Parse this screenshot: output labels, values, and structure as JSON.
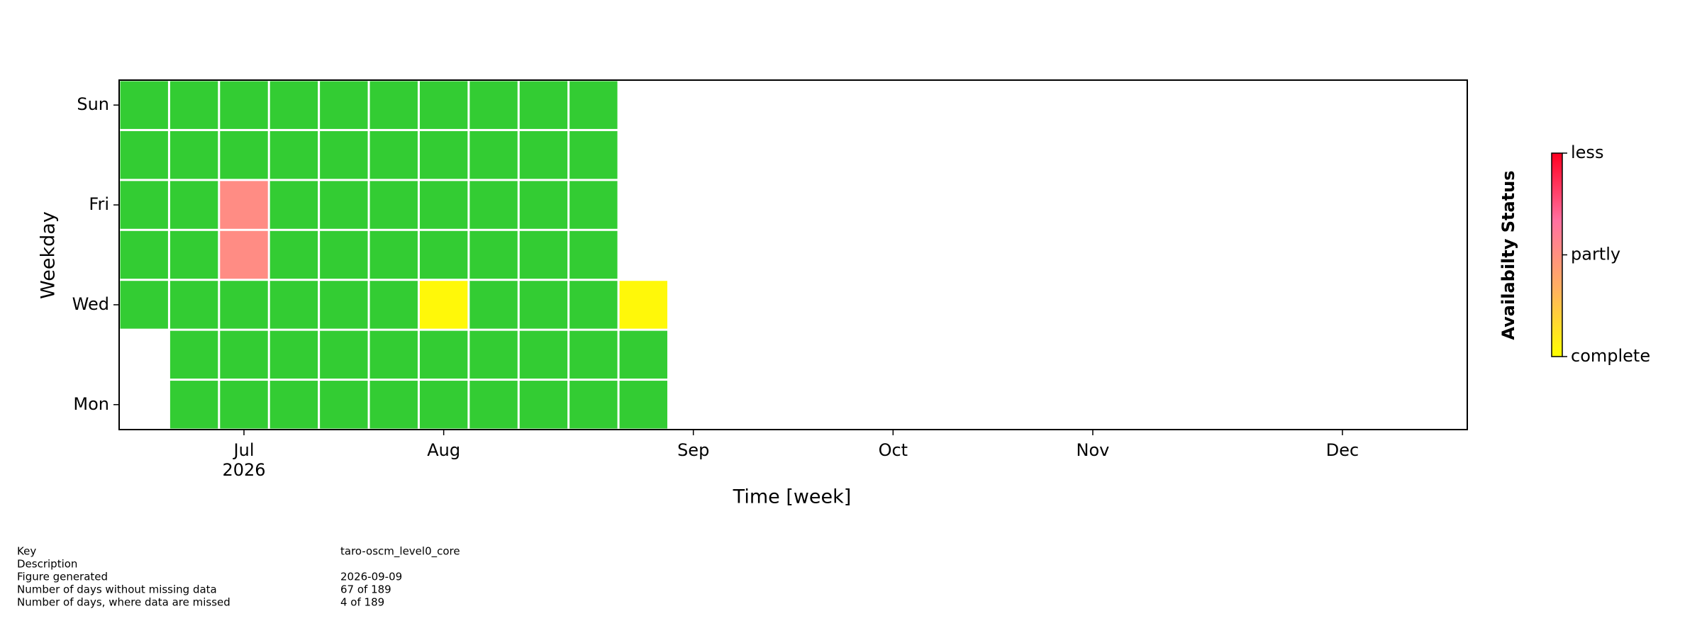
{
  "chart_data": {
    "type": "calendar-heatmap",
    "xlabel": "Time [week]",
    "ylabel": "Weekday",
    "colorbar_label": "Availabilty Status",
    "categories": [
      "Mon",
      null,
      "Wed",
      null,
      "Fri",
      null,
      "Sun"
    ],
    "xlim": [
      -0.5,
      26.5
    ],
    "xticks": [
      {
        "value": 2,
        "label": "Jul"
      },
      {
        "value": 6,
        "label": "Aug"
      },
      {
        "value": 11,
        "label": "Sep"
      },
      {
        "value": 15,
        "label": "Oct"
      },
      {
        "value": 19,
        "label": "Nov"
      },
      {
        "value": 24,
        "label": "Dec"
      }
    ],
    "x_year_label": "2026",
    "values": [
      [
        null,
        0,
        0,
        0,
        0,
        0,
        0,
        0,
        0,
        0,
        0
      ],
      [
        null,
        0,
        0,
        0,
        0,
        0,
        0,
        0,
        0,
        0,
        0
      ],
      [
        0,
        0,
        0,
        0,
        0,
        0,
        3,
        0,
        0,
        0,
        3
      ],
      [
        0,
        0,
        52,
        0,
        0,
        0,
        0,
        0,
        0,
        0,
        null
      ],
      [
        0,
        0,
        52,
        0,
        0,
        0,
        0,
        0,
        0,
        0,
        null
      ],
      [
        0,
        0,
        0,
        0,
        0,
        0,
        0,
        0,
        0,
        0,
        null
      ],
      [
        0,
        0,
        0,
        0,
        0,
        0,
        0,
        0,
        0,
        0,
        null
      ]
    ],
    "no_missing_color": "#33cc33",
    "clim": [
      0,
      100
    ],
    "cticks": [
      {
        "value": 0,
        "label": "complete"
      },
      {
        "value": 50,
        "label": "partly"
      },
      {
        "value": 100,
        "label": "less"
      }
    ],
    "colormap": [
      "#ffff00",
      "#ffb060",
      "#ff70a0",
      "#ff0020"
    ]
  },
  "info": {
    "rows": [
      [
        "Key",
        "taro-oscm_level0_core"
      ],
      [
        "Description"
      ],
      [
        "Figure generated",
        "2026-09-09"
      ],
      [
        "Number of days without missing data",
        "67 of 189"
      ],
      [
        "Number of days, where data are missed",
        "4 of 189"
      ]
    ]
  }
}
